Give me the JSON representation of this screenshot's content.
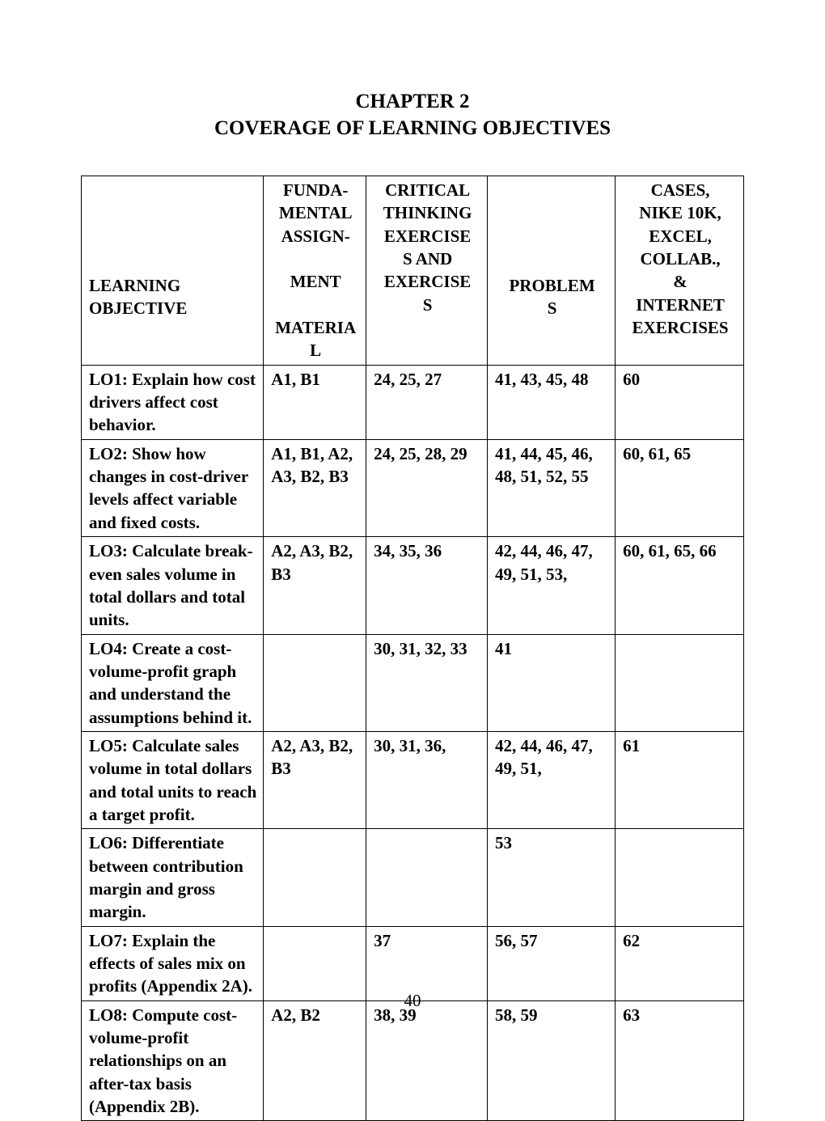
{
  "title": {
    "line1": "CHAPTER 2",
    "line2": "COVERAGE OF LEARNING OBJECTIVES"
  },
  "columns": [
    "LEARNING OBJECTIVE",
    "FUNDA-MENTAL ASSIGN-\n\nMENT\n\nMATERIAL",
    "CRITICAL THINKING EXERCISES AND EXERCISES",
    "PROBLEMS",
    "CASES, NIKE 10K, EXCEL, COLLAB., & INTERNET EXERCISES"
  ],
  "rows": [
    {
      "objective": "LO1: Explain how cost drivers affect cost behavior.",
      "fundamental": "A1, B1",
      "critical": "24, 25, 27",
      "problems": "41, 43, 45, 48",
      "cases": "60"
    },
    {
      "objective": "LO2: Show how changes in cost-driver levels affect variable and fixed costs.",
      "fundamental": "A1, B1, A2, A3, B2, B3",
      "critical": "24, 25, 28, 29",
      "problems": "41, 44, 45, 46, 48, 51,  52, 55",
      "cases": "60,  61, 65"
    },
    {
      "objective": "LO3: Calculate break-even sales volume in total dollars and total units.",
      "fundamental": "A2, A3, B2, B3",
      "critical": "34, 35, 36",
      "problems": "42, 44, 46, 47, 49, 51, 53,",
      "cases": "60, 61, 65, 66"
    },
    {
      "objective": "LO4: Create a cost-volume-profit graph and understand the assumptions behind it.",
      "fundamental": "",
      "critical": "30, 31, 32, 33",
      "problems": "41",
      "cases": ""
    },
    {
      "objective": "LO5: Calculate sales volume in total dollars and total units to reach a target profit.",
      "fundamental": "A2, A3, B2, B3",
      "critical": "30, 31, 36,",
      "problems": "42, 44, 46, 47, 49, 51,",
      "cases": "61"
    },
    {
      "objective": "LO6: Differentiate between contribution margin and gross margin.",
      "fundamental": "",
      "critical": "",
      "problems": "53",
      "cases": ""
    },
    {
      "objective": "LO7: Explain the effects of sales mix on profits (Appendix 2A).",
      "fundamental": "",
      "critical": "37",
      "problems": "56, 57",
      "cases": "62"
    },
    {
      "objective": "LO8: Compute cost-volume-profit relationships on an after-tax basis (Appendix 2B).",
      "fundamental": "A2, B2",
      "critical": "38, 39",
      "problems": "58, 59",
      "cases": "63"
    }
  ],
  "page_number": "40"
}
